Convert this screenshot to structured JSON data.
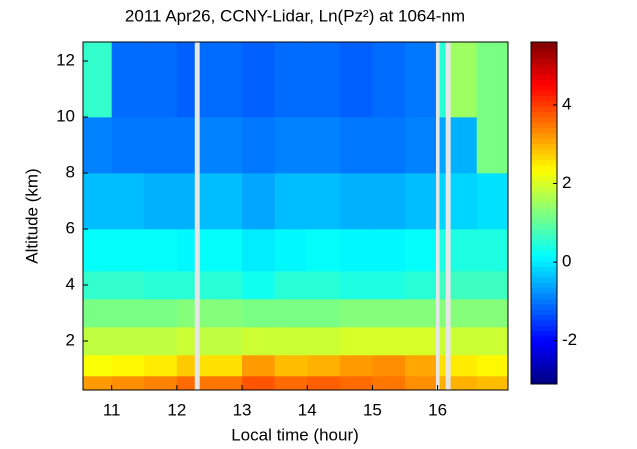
{
  "chart_data": {
    "type": "heatmap",
    "title": "2011 Apr26, CCNY-Lidar, Ln(Pz²) at 1064-nm",
    "x_label": "Local time (hour)",
    "y_label": "Altitude (km)",
    "x_edges": [
      10.56,
      11,
      11.5,
      12,
      12.27,
      12.35,
      13,
      13.5,
      14,
      14.5,
      15,
      15.5,
      15.97,
      16.03,
      16.12,
      16.2,
      16.6,
      17.08
    ],
    "y_edges": [
      0.25,
      0.75,
      1.5,
      2.5,
      3.5,
      4.5,
      6,
      8,
      10,
      12.68
    ],
    "values": [
      [
        3.2,
        3.3,
        3.4,
        3.6,
        null,
        3.5,
        3.8,
        3.6,
        3.7,
        3.6,
        3.5,
        3.3,
        null,
        3.0,
        null,
        3.0,
        2.9
      ],
      [
        2.3,
        2.4,
        2.5,
        2.8,
        null,
        2.6,
        3.2,
        2.9,
        3.0,
        3.2,
        3.3,
        3.1,
        null,
        2.6,
        null,
        2.5,
        2.4
      ],
      [
        1.8,
        1.8,
        1.8,
        1.9,
        null,
        1.8,
        1.9,
        1.9,
        1.9,
        2.0,
        2.0,
        2.0,
        null,
        1.9,
        null,
        1.9,
        1.9
      ],
      [
        1.2,
        1.2,
        1.2,
        1.3,
        null,
        1.3,
        1.2,
        1.2,
        1.2,
        1.3,
        1.3,
        1.3,
        null,
        1.3,
        null,
        1.3,
        1.3
      ],
      [
        0.6,
        0.6,
        0.5,
        0.5,
        null,
        0.5,
        0.3,
        0.5,
        0.5,
        0.4,
        0.4,
        0.5,
        null,
        0.7,
        null,
        0.7,
        0.7
      ],
      [
        0.2,
        0.2,
        0.2,
        0.1,
        null,
        0.2,
        0,
        0.1,
        0.2,
        0.1,
        0.1,
        0.2,
        null,
        0.4,
        null,
        0.4,
        0.4
      ],
      [
        -0.4,
        -0.4,
        -0.5,
        -0.5,
        null,
        -0.4,
        -0.6,
        -0.4,
        -0.4,
        -0.5,
        -0.5,
        -0.4,
        null,
        -0.2,
        null,
        -0.2,
        -0.1
      ],
      [
        -0.9,
        -1,
        -1,
        -1,
        null,
        -0.9,
        -1,
        -0.9,
        -0.9,
        -1,
        -1,
        -0.9,
        null,
        -0.6,
        null,
        -0.5,
        1.2
      ],
      [
        0.6,
        -1.1,
        -1.1,
        -1.2,
        null,
        -1.1,
        -1.2,
        -1.1,
        -1.1,
        -1.2,
        -1.1,
        -1,
        null,
        0.5,
        null,
        1.5,
        1.2
      ]
    ],
    "xlim": [
      10.56,
      17.08
    ],
    "xticks": [
      11,
      12,
      13,
      14,
      15,
      16
    ],
    "ylim": [
      0.25,
      12.68
    ],
    "yticks": [
      2,
      4,
      6,
      8,
      10,
      12
    ],
    "clim": [
      -3.1,
      5.6
    ],
    "cticks": [
      -2,
      0,
      2,
      4
    ],
    "colormap": "jet"
  }
}
